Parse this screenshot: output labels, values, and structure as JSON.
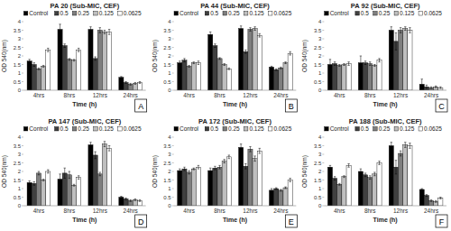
{
  "chart_data": [
    {
      "type": "bar",
      "title": "PA 20 (Sub-MIC, CEF)",
      "annotations": [
        "A"
      ],
      "x_label": "Time (h)",
      "y_label": "OD 540(nm)",
      "categories": [
        "4hrs",
        "8hrs",
        "12hrs",
        "24hrs"
      ],
      "ylim": [
        0,
        4
      ],
      "yticks": [
        0,
        0.5,
        1,
        1.5,
        2,
        2.5,
        3,
        3.5,
        4
      ],
      "grid": false,
      "legend": "top",
      "series": [
        {
          "name": "Control",
          "color": "#000000",
          "values": [
            1.7,
            3.55,
            3.55,
            0.75
          ],
          "errors": [
            0.1,
            0.3,
            0.15,
            0.05
          ]
        },
        {
          "name": "0.5",
          "color": "#404040",
          "values": [
            1.5,
            2.6,
            1.85,
            0.45
          ],
          "errors": [
            0.1,
            0.1,
            0.1,
            0.05
          ]
        },
        {
          "name": "0.25",
          "color": "#7f7f7f",
          "values": [
            1.25,
            1.8,
            3.5,
            0.35
          ],
          "errors": [
            0.05,
            0.05,
            0.15,
            0.05
          ]
        },
        {
          "name": "0.125",
          "color": "#bfbfbf",
          "values": [
            1.4,
            1.75,
            3.4,
            0.4
          ],
          "errors": [
            0.05,
            0.05,
            0.1,
            0.05
          ]
        },
        {
          "name": "0.0625",
          "color": "#ffffff",
          "values": [
            2.35,
            2.35,
            3.4,
            0.45
          ],
          "errors": [
            0.1,
            0.1,
            0.15,
            0.05
          ]
        }
      ]
    },
    {
      "type": "bar",
      "title": "PA 44 (Sub-MIC, CEF)",
      "annotations": [
        "B"
      ],
      "x_label": "Time (h)",
      "y_label": "OD 540(nm)",
      "categories": [
        "4hrs",
        "8hrs",
        "12hrs",
        "24hrs"
      ],
      "ylim": [
        0,
        4
      ],
      "yticks": [
        0,
        0.5,
        1,
        1.5,
        2,
        2.5,
        3,
        3.5,
        4
      ],
      "grid": false,
      "legend": "top",
      "series": [
        {
          "name": "Control",
          "color": "#000000",
          "values": [
            1.6,
            3.25,
            3.6,
            1.35
          ],
          "errors": [
            0.1,
            0.15,
            0.15,
            0.05
          ]
        },
        {
          "name": "0.5",
          "color": "#404040",
          "values": [
            1.75,
            2.6,
            2.25,
            1.2
          ],
          "errors": [
            0.1,
            0.1,
            0.1,
            0.05
          ]
        },
        {
          "name": "0.25",
          "color": "#7f7f7f",
          "values": [
            1.4,
            1.85,
            3.55,
            1.3
          ],
          "errors": [
            0.05,
            0.05,
            0.1,
            0.05
          ]
        },
        {
          "name": "0.125",
          "color": "#bfbfbf",
          "values": [
            1.6,
            1.5,
            3.6,
            1.6
          ],
          "errors": [
            0.05,
            0.05,
            0.1,
            0.05
          ]
        },
        {
          "name": "0.0625",
          "color": "#ffffff",
          "values": [
            1.6,
            1.25,
            3.2,
            2.15
          ],
          "errors": [
            0.1,
            0.05,
            0.1,
            0.1
          ]
        }
      ]
    },
    {
      "type": "bar",
      "title": "PA 92 (Sub-MIC, CEF)",
      "annotations": [
        "C"
      ],
      "x_label": "Time (h)",
      "y_label": "OD 540(nm)",
      "categories": [
        "4hrs",
        "8hrs",
        "12hrs",
        "24hrs"
      ],
      "ylim": [
        0,
        4
      ],
      "yticks": [
        0,
        0.5,
        1,
        1.5,
        2,
        2.5,
        3,
        3.5,
        4
      ],
      "grid": false,
      "legend": "top",
      "series": [
        {
          "name": "Control",
          "color": "#000000",
          "values": [
            1.5,
            1.6,
            3.5,
            0.35
          ],
          "errors": [
            0.3,
            0.4,
            0.2,
            0.3
          ]
        },
        {
          "name": "0.5",
          "color": "#404040",
          "values": [
            1.55,
            1.6,
            2.85,
            0.2
          ],
          "errors": [
            0.1,
            0.1,
            0.5,
            0.1
          ]
        },
        {
          "name": "0.25",
          "color": "#7f7f7f",
          "values": [
            1.45,
            1.55,
            3.5,
            0.15
          ],
          "errors": [
            0.05,
            0.1,
            0.15,
            0.05
          ]
        },
        {
          "name": "0.125",
          "color": "#bfbfbf",
          "values": [
            1.5,
            1.45,
            3.6,
            0.2
          ],
          "errors": [
            0.05,
            0.05,
            0.1,
            0.05
          ]
        },
        {
          "name": "0.0625",
          "color": "#ffffff",
          "values": [
            1.55,
            1.75,
            3.5,
            0.15
          ],
          "errors": [
            0.1,
            0.1,
            0.15,
            0.05
          ]
        }
      ]
    },
    {
      "type": "bar",
      "title": "PA 147 (Sub-MIC, CEF)",
      "annotations": [
        "D"
      ],
      "x_label": "Time (h)",
      "y_label": "OD 540(nm)",
      "categories": [
        "4hrs",
        "8hrs",
        "12hrs",
        "24hrs"
      ],
      "ylim": [
        0,
        4
      ],
      "yticks": [
        0,
        0.5,
        1,
        1.5,
        2,
        2.5,
        3,
        3.5,
        4
      ],
      "grid": false,
      "legend": "top",
      "series": [
        {
          "name": "Control",
          "color": "#000000",
          "values": [
            1.35,
            1.55,
            3.55,
            0.5
          ],
          "errors": [
            0.1,
            0.3,
            0.15,
            0.05
          ]
        },
        {
          "name": "0.5",
          "color": "#404040",
          "values": [
            1.3,
            1.9,
            2.95,
            0.4
          ],
          "errors": [
            0.1,
            0.3,
            0.2,
            0.05
          ]
        },
        {
          "name": "0.25",
          "color": "#7f7f7f",
          "values": [
            1.9,
            1.8,
            1.85,
            0.3
          ],
          "errors": [
            0.1,
            0.2,
            0.1,
            0.05
          ]
        },
        {
          "name": "0.125",
          "color": "#bfbfbf",
          "values": [
            1.5,
            1.2,
            3.6,
            0.35
          ],
          "errors": [
            0.05,
            0.05,
            0.15,
            0.05
          ]
        },
        {
          "name": "0.0625",
          "color": "#ffffff",
          "values": [
            2.0,
            1.65,
            3.35,
            0.3
          ],
          "errors": [
            0.1,
            0.1,
            0.15,
            0.05
          ]
        }
      ]
    },
    {
      "type": "bar",
      "title": "PA 172 (Sub-MIC, CEF)",
      "annotations": [
        "E"
      ],
      "x_label": "Time (h)",
      "y_label": "OD 540(nm)",
      "categories": [
        "4hrs",
        "8hrs",
        "12hrs",
        "24hrs"
      ],
      "ylim": [
        0,
        4
      ],
      "yticks": [
        0,
        0.5,
        1,
        1.5,
        2,
        2.5,
        3,
        3.5,
        4
      ],
      "grid": false,
      "legend": "top",
      "series": [
        {
          "name": "Control",
          "color": "#000000",
          "values": [
            2.05,
            2.05,
            3.4,
            0.9
          ],
          "errors": [
            0.1,
            0.15,
            0.2,
            0.1
          ]
        },
        {
          "name": "0.5",
          "color": "#404040",
          "values": [
            2.15,
            2.2,
            2.3,
            1.0
          ],
          "errors": [
            0.1,
            0.1,
            0.15,
            0.05
          ]
        },
        {
          "name": "0.25",
          "color": "#7f7f7f",
          "values": [
            1.95,
            2.25,
            3.3,
            0.9
          ],
          "errors": [
            0.1,
            0.1,
            0.15,
            0.05
          ]
        },
        {
          "name": "0.125",
          "color": "#bfbfbf",
          "values": [
            2.15,
            2.6,
            2.75,
            1.05
          ],
          "errors": [
            0.05,
            0.1,
            0.15,
            0.05
          ]
        },
        {
          "name": "0.0625",
          "color": "#ffffff",
          "values": [
            2.25,
            2.85,
            3.2,
            1.5
          ],
          "errors": [
            0.1,
            0.1,
            0.15,
            0.1
          ]
        }
      ]
    },
    {
      "type": "bar",
      "title": "PA 188 (Sub-MIC, CEF)",
      "annotations": [
        "F"
      ],
      "x_label": "Time (h)",
      "y_label": "OD 540(nm)",
      "categories": [
        "4hrs",
        "8hrs",
        "12hrs",
        "24hrs"
      ],
      "ylim": [
        0,
        4
      ],
      "yticks": [
        0,
        0.5,
        1,
        1.5,
        2,
        2.5,
        3,
        3.5,
        4
      ],
      "grid": false,
      "legend": "top",
      "series": [
        {
          "name": "Control",
          "color": "#000000",
          "values": [
            2.25,
            2.0,
            3.5,
            0.95
          ],
          "errors": [
            0.1,
            0.15,
            0.2,
            0.05
          ]
        },
        {
          "name": "0.5",
          "color": "#404040",
          "values": [
            1.6,
            1.8,
            2.25,
            0.6
          ],
          "errors": [
            0.1,
            0.1,
            0.4,
            0.05
          ]
        },
        {
          "name": "0.25",
          "color": "#7f7f7f",
          "values": [
            1.25,
            1.65,
            3.05,
            0.3
          ],
          "errors": [
            0.05,
            0.1,
            0.15,
            0.05
          ]
        },
        {
          "name": "0.125",
          "color": "#bfbfbf",
          "values": [
            1.7,
            1.85,
            3.55,
            0.25
          ],
          "errors": [
            0.05,
            0.1,
            0.15,
            0.05
          ]
        },
        {
          "name": "0.0625",
          "color": "#ffffff",
          "values": [
            2.35,
            2.5,
            3.5,
            0.45
          ],
          "errors": [
            0.1,
            0.1,
            0.15,
            0.05
          ]
        }
      ]
    }
  ]
}
